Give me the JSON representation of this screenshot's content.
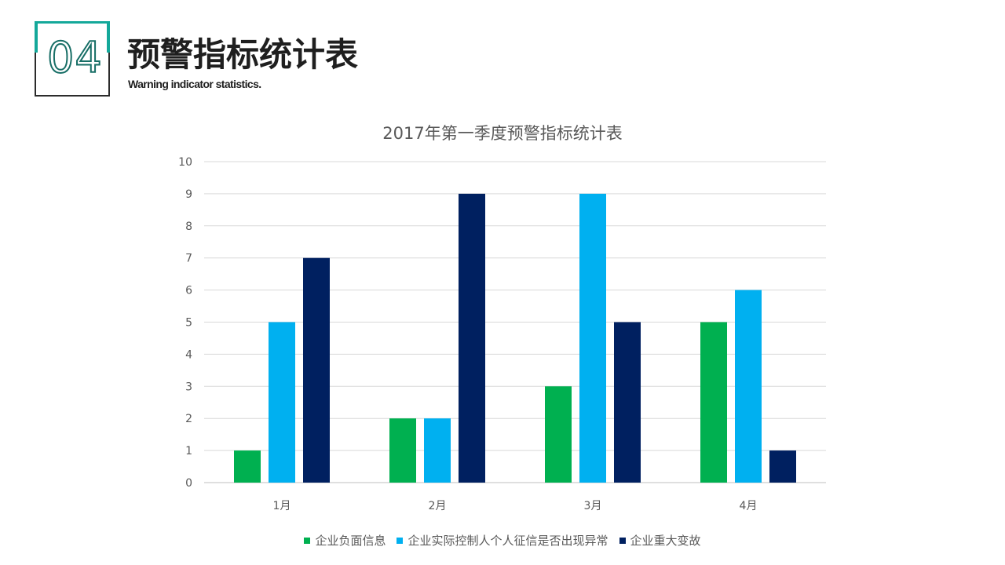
{
  "header": {
    "number": "04",
    "title": "预警指标统计表",
    "subtitle": "Warning indicator statistics."
  },
  "chart_data": {
    "type": "bar",
    "title": "2017年第一季度预警指标统计表",
    "categories": [
      "1月",
      "2月",
      "3月",
      "4月"
    ],
    "series": [
      {
        "name": "企业负面信息",
        "values": [
          1,
          2,
          3,
          5
        ],
        "color": "#00b050"
      },
      {
        "name": "企业实际控制人个人征信是否出现异常",
        "values": [
          5,
          2,
          9,
          6
        ],
        "color": "#00b0f0"
      },
      {
        "name": "企业重大变故",
        "values": [
          7,
          9,
          5,
          1
        ],
        "color": "#002060"
      }
    ],
    "ylim": [
      0,
      10
    ],
    "yticks": [
      0,
      1,
      2,
      3,
      4,
      5,
      6,
      7,
      8,
      9,
      10
    ],
    "grid": true,
    "legend_position": "bottom",
    "xlabel": "",
    "ylabel": ""
  }
}
